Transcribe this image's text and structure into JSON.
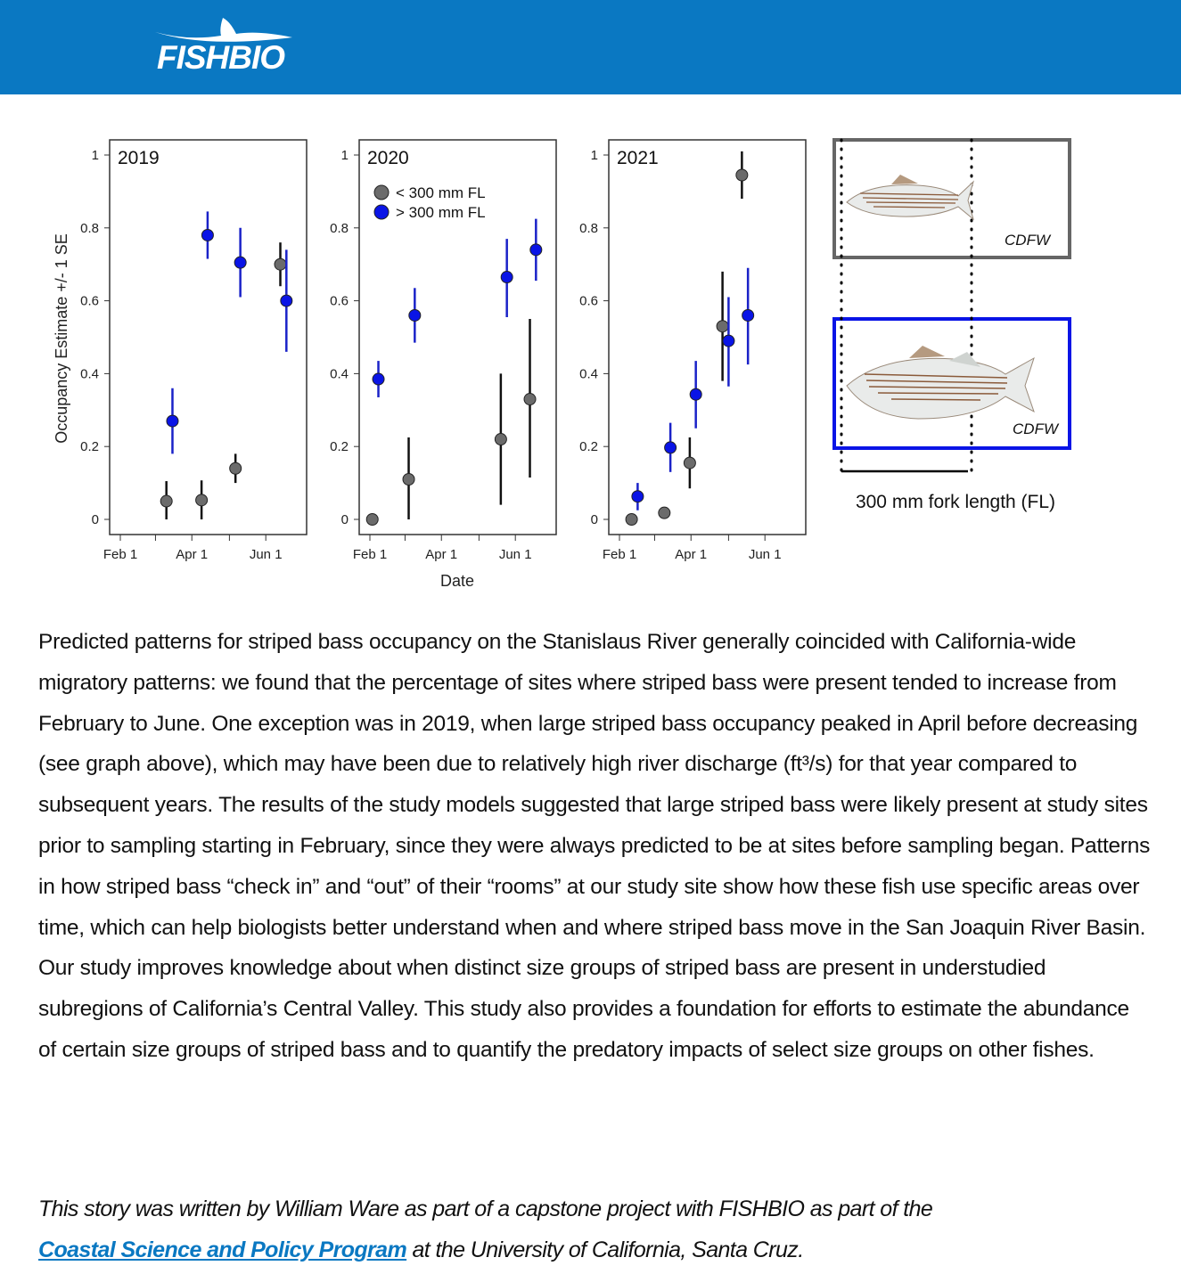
{
  "header": {
    "logo_text": "FISHBIO",
    "background": "#0a78c2"
  },
  "figure": {
    "fish_panels": {
      "small_credit": "CDFW",
      "large_credit": "CDFW",
      "scale_label": "300 mm fork length (FL)"
    }
  },
  "chart_data": {
    "type": "scatter",
    "ylabel": "Occupancy Estimate +/- 1 SE",
    "xlabel": "Date",
    "ylim": [
      0,
      1
    ],
    "yticks": [
      "0",
      "0.2",
      "0.4",
      "0.6",
      "0.8",
      "1"
    ],
    "xticks": [
      "Feb 1",
      "Apr 1",
      "Jun 1"
    ],
    "x_unit": "days after Feb 1",
    "legend": {
      "placement": "top-left (2020 panel)",
      "entries": [
        {
          "name": "< 300 mm FL",
          "color": "#6b6b6b"
        },
        {
          "name": "> 300 mm FL",
          "color": "#0a14e6"
        }
      ]
    },
    "panels": [
      {
        "title": "2019",
        "series": [
          {
            "name": "< 300 mm FL",
            "points": [
              {
                "x": 38,
                "y": 0.05,
                "lo": 0.0,
                "hi": 0.105
              },
              {
                "x": 67,
                "y": 0.053,
                "lo": 0.0,
                "hi": 0.107
              },
              {
                "x": 95,
                "y": 0.14,
                "lo": 0.1,
                "hi": 0.18
              },
              {
                "x": 132,
                "y": 0.7,
                "lo": 0.64,
                "hi": 0.76
              }
            ]
          },
          {
            "name": "> 300 mm FL",
            "points": [
              {
                "x": 43,
                "y": 0.27,
                "lo": 0.18,
                "hi": 0.36
              },
              {
                "x": 72,
                "y": 0.78,
                "lo": 0.715,
                "hi": 0.845
              },
              {
                "x": 99,
                "y": 0.705,
                "lo": 0.61,
                "hi": 0.8
              },
              {
                "x": 137,
                "y": 0.6,
                "lo": 0.46,
                "hi": 0.74
              }
            ]
          }
        ]
      },
      {
        "title": "2020",
        "series": [
          {
            "name": "< 300 mm FL",
            "points": [
              {
                "x": 2,
                "y": 0.0,
                "lo": 0.0,
                "hi": 0.0
              },
              {
                "x": 32,
                "y": 0.11,
                "lo": 0.0,
                "hi": 0.225
              },
              {
                "x": 108,
                "y": 0.22,
                "lo": 0.04,
                "hi": 0.4
              },
              {
                "x": 132,
                "y": 0.33,
                "lo": 0.115,
                "hi": 0.55
              }
            ]
          },
          {
            "name": "> 300 mm FL",
            "points": [
              {
                "x": 7,
                "y": 0.385,
                "lo": 0.335,
                "hi": 0.435
              },
              {
                "x": 37,
                "y": 0.56,
                "lo": 0.485,
                "hi": 0.635
              },
              {
                "x": 113,
                "y": 0.665,
                "lo": 0.555,
                "hi": 0.77
              },
              {
                "x": 137,
                "y": 0.74,
                "lo": 0.655,
                "hi": 0.825
              }
            ]
          }
        ]
      },
      {
        "title": "2021",
        "series": [
          {
            "name": "< 300 mm FL",
            "points": [
              {
                "x": 10,
                "y": 0.0,
                "lo": 0.0,
                "hi": 0.0
              },
              {
                "x": 37,
                "y": 0.018,
                "lo": 0.018,
                "hi": 0.018
              },
              {
                "x": 58,
                "y": 0.155,
                "lo": 0.085,
                "hi": 0.225
              },
              {
                "x": 85,
                "y": 0.53,
                "lo": 0.38,
                "hi": 0.68
              },
              {
                "x": 101,
                "y": 0.945,
                "lo": 0.88,
                "hi": 1.01
              }
            ]
          },
          {
            "name": "> 300 mm FL",
            "points": [
              {
                "x": 15,
                "y": 0.063,
                "lo": 0.025,
                "hi": 0.1
              },
              {
                "x": 42,
                "y": 0.197,
                "lo": 0.13,
                "hi": 0.265
              },
              {
                "x": 63,
                "y": 0.343,
                "lo": 0.25,
                "hi": 0.435
              },
              {
                "x": 90,
                "y": 0.49,
                "lo": 0.365,
                "hi": 0.61
              },
              {
                "x": 106,
                "y": 0.56,
                "lo": 0.425,
                "hi": 0.69
              }
            ]
          }
        ]
      }
    ]
  },
  "article": {
    "paragraph": "Predicted patterns for striped bass occupancy on the Stanislaus River generally coincided with California-wide migratory patterns: we found that the percentage of sites where striped bass were present tended to increase from February to June. One exception was in 2019, when large striped bass occupancy peaked in April before decreasing (see graph above), which may have been due to relatively high river discharge (ft³/s) for that year compared to subsequent years. The results of the study models suggested that large striped bass were likely present at study sites prior to sampling starting in February, since they were always predicted to be at sites before sampling began. Patterns in how striped bass “check in” and “out” of their “rooms” at our study site show how these fish use specific areas over time, which can help biologists better understand when and where striped bass move in the San Joaquin River Basin. Our study improves knowledge about when distinct size groups of striped bass are present in understudied subregions of California’s Central Valley. This study also provides a foundation for efforts to estimate the abundance of certain size groups of striped bass and to quantify the predatory impacts of select size groups on other fishes.",
    "credit_before": "This story was written by William Ware as part of a capstone project with FISHBIO as part of the",
    "credit_link": "Coastal Science and Policy Program",
    "credit_after": " at the University of California, Santa Cruz."
  }
}
